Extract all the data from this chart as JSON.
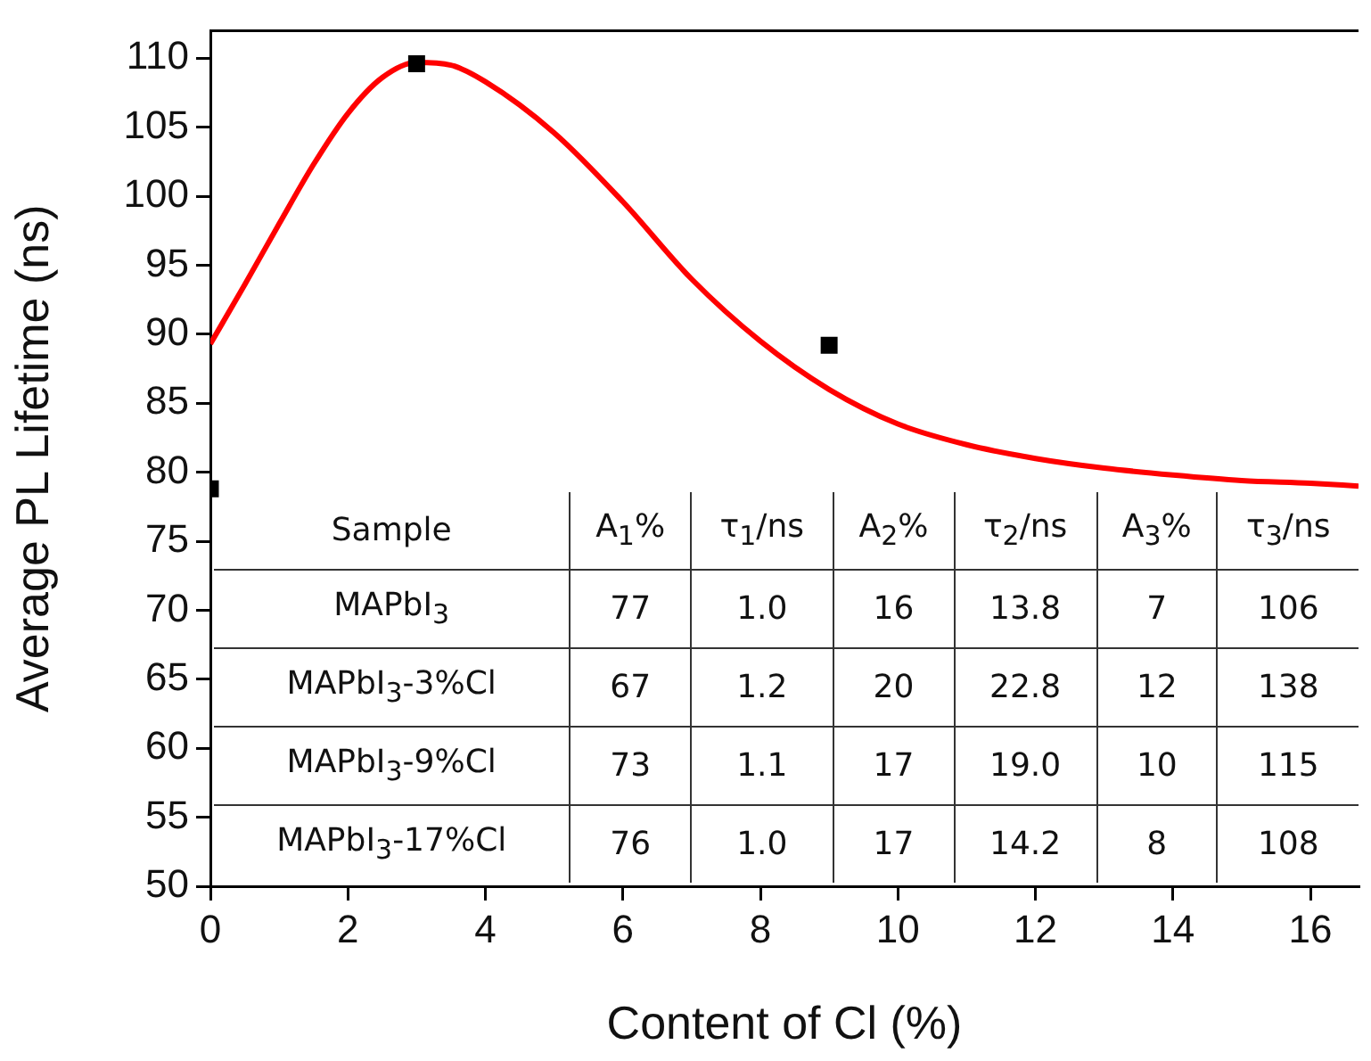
{
  "chart_data": {
    "type": "scatter",
    "xlabel": "Content of Cl (%)",
    "ylabel": "Average PL Lifetime (ns)",
    "xlim": [
      0,
      16.7
    ],
    "xticks": [
      0,
      2,
      4,
      6,
      8,
      10,
      12,
      14,
      16
    ],
    "ylim": [
      50,
      112
    ],
    "yticks": [
      50,
      55,
      60,
      65,
      70,
      75,
      80,
      85,
      90,
      95,
      100,
      105,
      110
    ],
    "grid": false,
    "legend": false,
    "marker": "square",
    "series": [
      {
        "color": "#000000",
        "x": [
          0,
          3,
          9
        ],
        "values": [
          78.8,
          109.6,
          89.2
        ]
      },
      {
        "type": "line",
        "color": "#ff0000",
        "marker": "none",
        "line_style": "solid",
        "x": [
          0,
          0.5,
          1,
          1.5,
          2,
          2.5,
          3,
          3.5,
          4,
          5,
          6,
          7,
          8,
          9,
          10,
          11,
          12,
          13,
          14,
          15,
          16,
          16.7
        ],
        "values": [
          89.3,
          93.6,
          98,
          102.3,
          106,
          108.6,
          109.7,
          109.5,
          108.3,
          104.6,
          99.6,
          94,
          89.5,
          86,
          83.5,
          82,
          81,
          80.3,
          79.8,
          79.4,
          79.2,
          79
        ]
      }
    ],
    "annotations": [
      "Sample",
      "A$_{1}$%",
      "τ$_{1}$/ns",
      "A$_{2}$%",
      "τ$_{2}$/ns",
      "A$_{3}$%",
      "τ$_{3}$/ns",
      "MAPbI$_{3}$",
      "77",
      "1.0",
      "16",
      "13.8",
      "7",
      "106",
      "MAPbI$_{3}$-3%Cl",
      "67",
      "1.2",
      "20",
      "22.8",
      "12",
      "138",
      "MAPbI$_{3}$-9%Cl",
      "73",
      "1.1",
      "17",
      "19.0",
      "10",
      "115",
      "MAPbI$_{3}$-17%Cl",
      "76",
      "1.0",
      "17",
      "14.2",
      "8",
      "108"
    ]
  }
}
